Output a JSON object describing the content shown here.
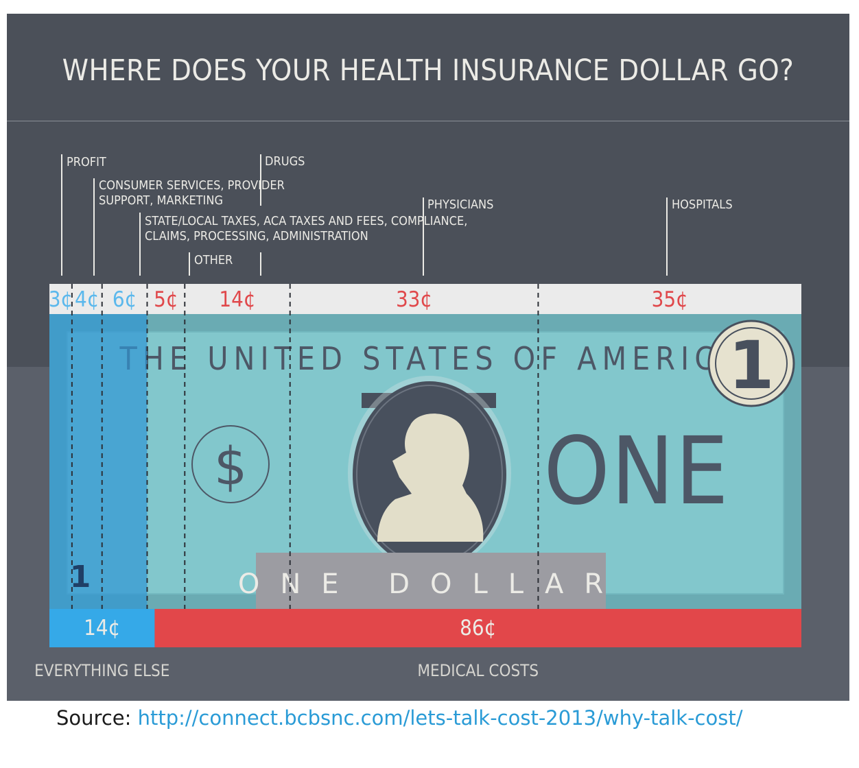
{
  "chart_data": {
    "type": "bar",
    "title": "WHERE DOES YOUR HEALTH INSURANCE DOLLAR GO?",
    "unit": "¢",
    "categories": [
      "PROFIT",
      "CONSUMER SERVICES, PROVIDER SUPPORT, MARKETING",
      "STATE/LOCAL TAXES, ACA TAXES AND FEES, COMPLIANCE, CLAIMS, PROCESSING, ADMINISTRATION",
      "OTHER",
      "DRUGS",
      "PHYSICIANS",
      "HOSPITALS"
    ],
    "label_lines": [
      [
        "PROFIT"
      ],
      [
        "CONSUMER SERVICES, PROVIDER",
        "SUPPORT, MARKETING"
      ],
      [
        "STATE/LOCAL TAXES, ACA TAXES AND FEES, COMPLIANCE,",
        "CLAIMS, PROCESSING, ADMINISTRATION"
      ],
      [
        "OTHER"
      ],
      [
        "DRUGS"
      ],
      [
        "PHYSICIANS"
      ],
      [
        "HOSPITALS"
      ]
    ],
    "values": [
      3,
      4,
      6,
      5,
      14,
      33,
      35
    ],
    "value_labels": [
      "3¢",
      "4¢",
      "6¢",
      "5¢",
      "14¢",
      "33¢",
      "35¢"
    ],
    "groups": [
      {
        "name": "EVERYTHING ELSE",
        "value": 14,
        "value_label": "14¢",
        "members": [
          0,
          1,
          2
        ],
        "color": "#35a9e8"
      },
      {
        "name": "MEDICAL COSTS",
        "value": 86,
        "value_label": "86¢",
        "members": [
          3,
          4,
          5,
          6
        ],
        "color": "#e2474a"
      }
    ],
    "total": 100
  },
  "bill": {
    "header": "THE UNITED STATES OF AMERICA",
    "denomination": "1",
    "word": "ONE",
    "banner": "ONE DOLLAR",
    "currency_symbol": "$",
    "corner_numeral": "1"
  },
  "source": {
    "label": "Source:",
    "url": "http://connect.bcbsnc.com/lets-talk-cost-2013/why-talk-cost/"
  },
  "colors": {
    "background": "#4b5059",
    "bill": "#82c7cc",
    "bill_border": "#6aabb3",
    "everything_else": "#35a9e8",
    "medical_costs": "#e2474a",
    "everything_else_text": "#5bb8ec",
    "medical_text": "#e0484b",
    "value_strip": "#ebebeb",
    "label_text": "#ecebe6",
    "dark": "#48505d"
  }
}
